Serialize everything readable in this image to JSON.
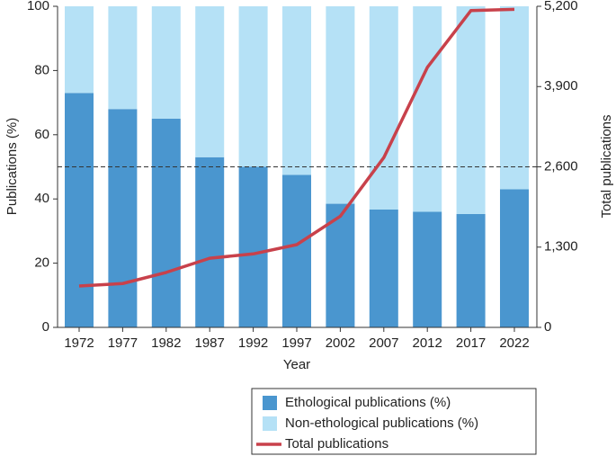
{
  "chart_data": {
    "type": "bar",
    "stacked": true,
    "categories": [
      "1972",
      "1977",
      "1982",
      "1987",
      "1992",
      "1997",
      "2002",
      "2007",
      "2012",
      "2017",
      "2022"
    ],
    "series": [
      {
        "name": "Ethological publications (%)",
        "color": "#4a96cf",
        "values": [
          73,
          68,
          65,
          53,
          50,
          47.5,
          38.5,
          36.7,
          36,
          35.3,
          43
        ]
      },
      {
        "name": "Non-ethological publications (%)",
        "color": "#b5e1f6",
        "values": [
          27,
          32,
          35,
          47,
          50,
          52.5,
          61.5,
          63.3,
          64,
          64.7,
          57
        ]
      },
      {
        "name": "Total publications",
        "color": "#c8414b",
        "type": "line",
        "axis": "y2",
        "values": [
          670,
          710,
          890,
          1120,
          1190,
          1340,
          1800,
          2750,
          4210,
          5130,
          5150
        ]
      }
    ],
    "xlabel": "Year",
    "ylabel": "Publications (%)",
    "y2label": "Total publications",
    "ylim": [
      0,
      100
    ],
    "yticks": [
      0,
      20,
      40,
      60,
      80,
      100
    ],
    "y2lim": [
      0,
      5200
    ],
    "y2ticks": [
      0,
      {
        "value": 1300,
        "label": "1,300"
      },
      {
        "value": 2600,
        "label": "2,600"
      },
      {
        "value": 3900,
        "label": "3,900"
      },
      {
        "value": 5200,
        "label": "5,200"
      }
    ],
    "reference_line": 50,
    "legend": "bottom-right"
  }
}
